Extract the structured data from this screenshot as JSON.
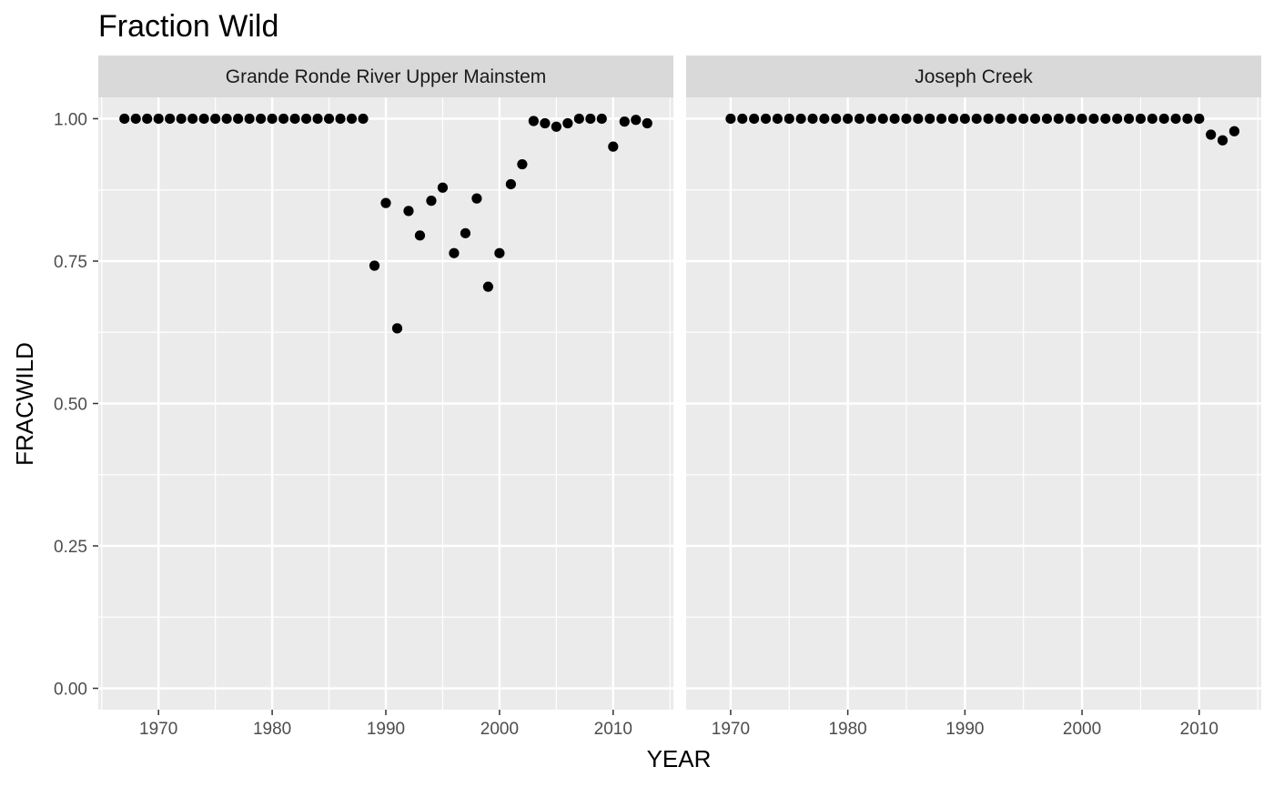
{
  "chart_data": {
    "type": "scatter",
    "title": "Fraction Wild",
    "xlabel": "YEAR",
    "ylabel": "FRACWILD",
    "ylim": [
      -0.0375,
      1.0375
    ],
    "yticks": [
      0.0,
      0.25,
      0.5,
      0.75,
      1.0
    ],
    "ytick_labels": [
      "0.00",
      "0.25",
      "0.50",
      "0.75",
      "1.00"
    ],
    "xticks": [
      1970,
      1980,
      1990,
      2000,
      2010
    ],
    "xtick_labels": [
      "1970",
      "1980",
      "1990",
      "2000",
      "2010"
    ],
    "grid": true,
    "panels": [
      {
        "name": "Grande Ronde River Upper Mainstem",
        "xlim": [
          1964.7,
          2015.3
        ],
        "points": [
          {
            "x": 1967,
            "y": 1.0
          },
          {
            "x": 1968,
            "y": 1.0
          },
          {
            "x": 1969,
            "y": 1.0
          },
          {
            "x": 1970,
            "y": 1.0
          },
          {
            "x": 1971,
            "y": 1.0
          },
          {
            "x": 1972,
            "y": 1.0
          },
          {
            "x": 1973,
            "y": 1.0
          },
          {
            "x": 1974,
            "y": 1.0
          },
          {
            "x": 1975,
            "y": 1.0
          },
          {
            "x": 1976,
            "y": 1.0
          },
          {
            "x": 1977,
            "y": 1.0
          },
          {
            "x": 1978,
            "y": 1.0
          },
          {
            "x": 1979,
            "y": 1.0
          },
          {
            "x": 1980,
            "y": 1.0
          },
          {
            "x": 1981,
            "y": 1.0
          },
          {
            "x": 1982,
            "y": 1.0
          },
          {
            "x": 1983,
            "y": 1.0
          },
          {
            "x": 1984,
            "y": 1.0
          },
          {
            "x": 1985,
            "y": 1.0
          },
          {
            "x": 1986,
            "y": 1.0
          },
          {
            "x": 1987,
            "y": 1.0
          },
          {
            "x": 1988,
            "y": 1.0
          },
          {
            "x": 1989,
            "y": 0.742
          },
          {
            "x": 1990,
            "y": 0.852
          },
          {
            "x": 1991,
            "y": 0.632
          },
          {
            "x": 1992,
            "y": 0.838
          },
          {
            "x": 1993,
            "y": 0.795
          },
          {
            "x": 1994,
            "y": 0.856
          },
          {
            "x": 1995,
            "y": 0.879
          },
          {
            "x": 1996,
            "y": 0.764
          },
          {
            "x": 1997,
            "y": 0.799
          },
          {
            "x": 1998,
            "y": 0.86
          },
          {
            "x": 1999,
            "y": 0.705
          },
          {
            "x": 2000,
            "y": 0.764
          },
          {
            "x": 2001,
            "y": 0.885
          },
          {
            "x": 2002,
            "y": 0.92
          },
          {
            "x": 2003,
            "y": 0.996
          },
          {
            "x": 2004,
            "y": 0.992
          },
          {
            "x": 2005,
            "y": 0.986
          },
          {
            "x": 2006,
            "y": 0.992
          },
          {
            "x": 2007,
            "y": 1.0
          },
          {
            "x": 2008,
            "y": 1.0
          },
          {
            "x": 2009,
            "y": 1.0
          },
          {
            "x": 2010,
            "y": 0.951
          },
          {
            "x": 2011,
            "y": 0.995
          },
          {
            "x": 2012,
            "y": 0.998
          },
          {
            "x": 2013,
            "y": 0.992
          }
        ]
      },
      {
        "name": "Joseph Creek",
        "xlim": [
          1966.2,
          2015.3
        ],
        "points": [
          {
            "x": 1970,
            "y": 1.0
          },
          {
            "x": 1971,
            "y": 1.0
          },
          {
            "x": 1972,
            "y": 1.0
          },
          {
            "x": 1973,
            "y": 1.0
          },
          {
            "x": 1974,
            "y": 1.0
          },
          {
            "x": 1975,
            "y": 1.0
          },
          {
            "x": 1976,
            "y": 1.0
          },
          {
            "x": 1977,
            "y": 1.0
          },
          {
            "x": 1978,
            "y": 1.0
          },
          {
            "x": 1979,
            "y": 1.0
          },
          {
            "x": 1980,
            "y": 1.0
          },
          {
            "x": 1981,
            "y": 1.0
          },
          {
            "x": 1982,
            "y": 1.0
          },
          {
            "x": 1983,
            "y": 1.0
          },
          {
            "x": 1984,
            "y": 1.0
          },
          {
            "x": 1985,
            "y": 1.0
          },
          {
            "x": 1986,
            "y": 1.0
          },
          {
            "x": 1987,
            "y": 1.0
          },
          {
            "x": 1988,
            "y": 1.0
          },
          {
            "x": 1989,
            "y": 1.0
          },
          {
            "x": 1990,
            "y": 1.0
          },
          {
            "x": 1991,
            "y": 1.0
          },
          {
            "x": 1992,
            "y": 1.0
          },
          {
            "x": 1993,
            "y": 1.0
          },
          {
            "x": 1994,
            "y": 1.0
          },
          {
            "x": 1995,
            "y": 1.0
          },
          {
            "x": 1996,
            "y": 1.0
          },
          {
            "x": 1997,
            "y": 1.0
          },
          {
            "x": 1998,
            "y": 1.0
          },
          {
            "x": 1999,
            "y": 1.0
          },
          {
            "x": 2000,
            "y": 1.0
          },
          {
            "x": 2001,
            "y": 1.0
          },
          {
            "x": 2002,
            "y": 1.0
          },
          {
            "x": 2003,
            "y": 1.0
          },
          {
            "x": 2004,
            "y": 1.0
          },
          {
            "x": 2005,
            "y": 1.0
          },
          {
            "x": 2006,
            "y": 1.0
          },
          {
            "x": 2007,
            "y": 1.0
          },
          {
            "x": 2008,
            "y": 1.0
          },
          {
            "x": 2009,
            "y": 1.0
          },
          {
            "x": 2010,
            "y": 1.0
          },
          {
            "x": 2011,
            "y": 0.972
          },
          {
            "x": 2012,
            "y": 0.962
          },
          {
            "x": 2013,
            "y": 0.978
          }
        ]
      }
    ],
    "colors": {
      "panel_background": "#ebebeb",
      "strip_background": "#d9d9d9",
      "grid": "#ffffff",
      "point": "#000000"
    }
  }
}
